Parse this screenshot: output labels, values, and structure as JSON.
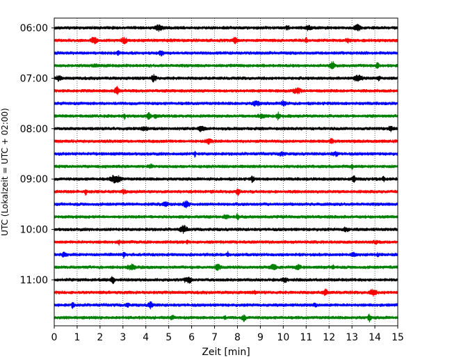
{
  "chart_data": {
    "type": "line",
    "title": "",
    "xlabel": "Zeit  [min]",
    "ylabel": "UTC (Lokalzeit = UTC + 02:00)",
    "xlim": [
      0,
      15
    ],
    "x_ticks": [
      "0",
      "1",
      "2",
      "3",
      "4",
      "5",
      "6",
      "7",
      "8",
      "9",
      "10",
      "11",
      "12",
      "13",
      "14",
      "15"
    ],
    "y_ticks": [
      "06:00",
      "07:00",
      "08:00",
      "09:00",
      "10:00",
      "11:00"
    ],
    "grid": "vertical-dotted",
    "trace_interval_minutes": 15,
    "trace_colors_cycle": [
      "#000000",
      "#ff0000",
      "#0000ff",
      "#008000"
    ],
    "traces_start": "06:00",
    "traces_count": 24
  }
}
